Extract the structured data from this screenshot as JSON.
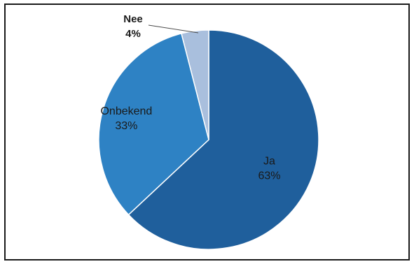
{
  "chart_data": {
    "type": "pie",
    "title": "",
    "categories": [
      "Ja",
      "Onbekend",
      "Nee"
    ],
    "values": [
      63,
      33,
      4
    ],
    "labels": [
      "63%",
      "33%",
      "4%"
    ],
    "colors": [
      "#1f5f9c",
      "#2e82c4",
      "#a9bfdd"
    ],
    "start_angle_deg": 0,
    "direction": "clockwise"
  }
}
